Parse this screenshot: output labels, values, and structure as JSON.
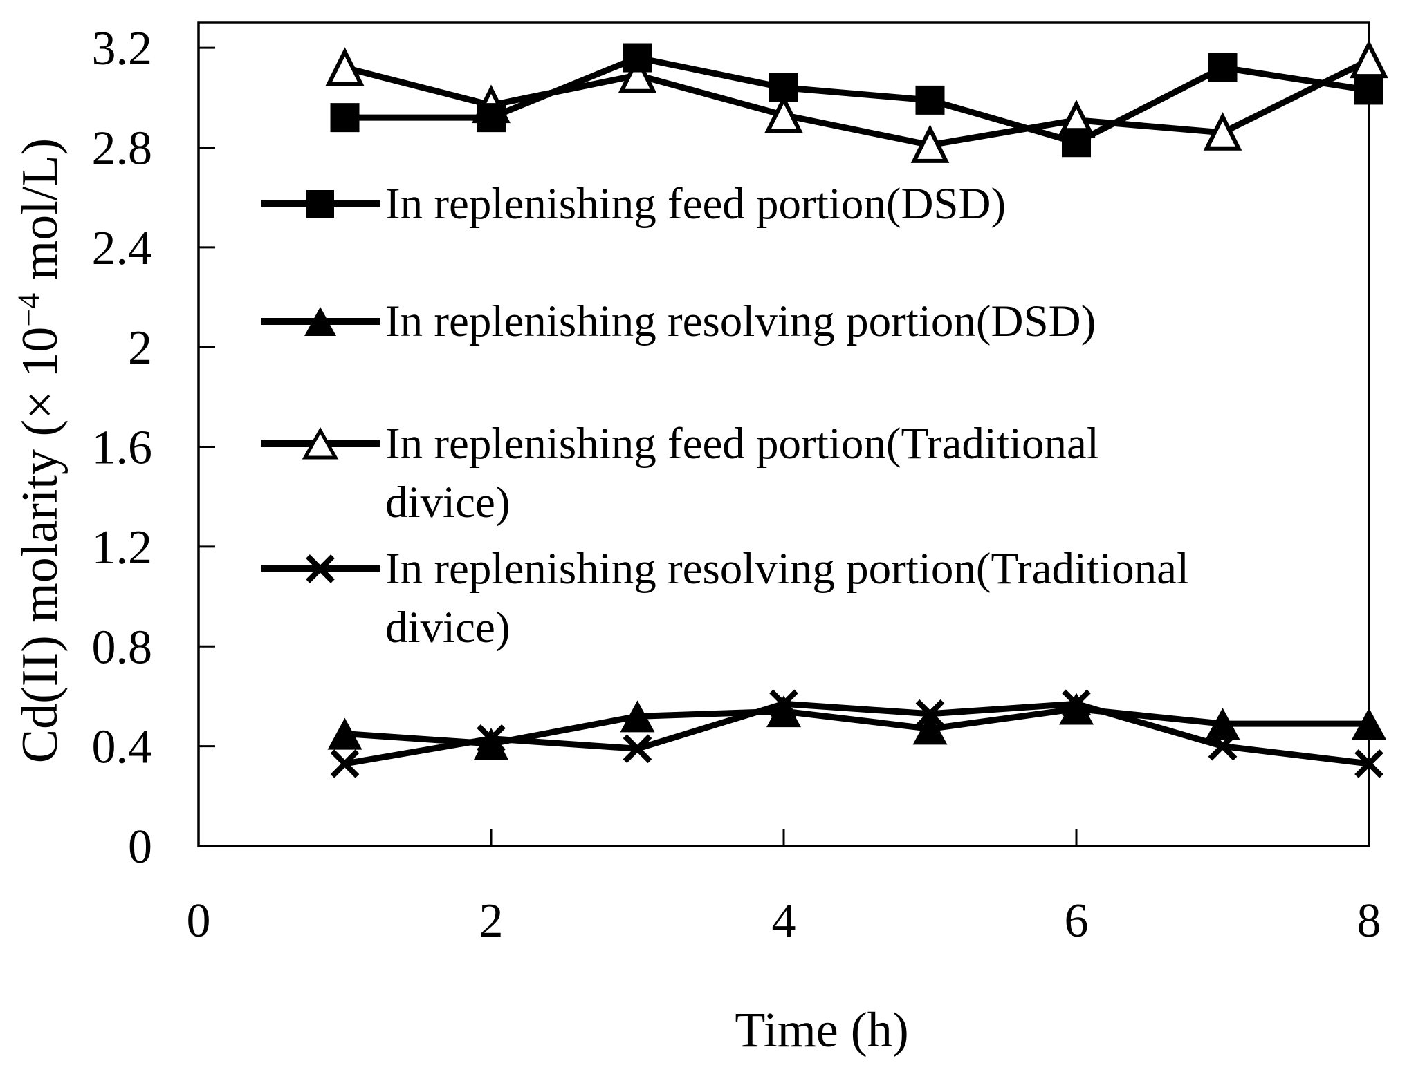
{
  "figure": {
    "background": "#ffffff",
    "foreground": "#000000"
  },
  "chart_data": {
    "type": "line",
    "title": "",
    "xlabel": "Time (h)",
    "ylabel": "Cd(II) molarity (× 10⁻⁴ mol/L)",
    "ylabel_parts": {
      "prefix": "Cd(II) molarity (× 10",
      "superscript": "−4",
      "suffix": " mol/L)"
    },
    "xlim": [
      0,
      8
    ],
    "ylim": [
      0,
      3.3
    ],
    "x_ticks": [
      0,
      2,
      4,
      6,
      8
    ],
    "x_tick_labels": [
      "0",
      "2",
      "4",
      "6",
      "8"
    ],
    "y_ticks": [
      0,
      0.4,
      0.8,
      1.2,
      1.6,
      2,
      2.4,
      2.8,
      3.2
    ],
    "y_tick_labels": [
      "0",
      "0.4",
      "0.8",
      "1.2",
      "1.6",
      "2",
      "2.4",
      "2.8",
      "3.2"
    ],
    "grid": false,
    "legend_position": "inside-upper-left",
    "x": [
      1,
      2,
      3,
      4,
      5,
      6,
      7,
      8
    ],
    "series": [
      {
        "name": "In replenishing feed portion(DSD)",
        "marker": "filled-square",
        "line_color": "#000000",
        "values": [
          2.92,
          2.92,
          3.16,
          3.04,
          2.99,
          2.82,
          3.12,
          3.03
        ]
      },
      {
        "name": "In replenishing resolving portion(DSD)",
        "marker": "filled-triangle",
        "line_color": "#000000",
        "values": [
          0.45,
          0.41,
          0.52,
          0.54,
          0.47,
          0.55,
          0.49,
          0.49
        ]
      },
      {
        "name": "In replenishing feed portion(Traditional divice)",
        "marker": "open-triangle",
        "line_color": "#000000",
        "values": [
          3.12,
          2.97,
          3.09,
          2.93,
          2.81,
          2.91,
          2.86,
          3.15
        ]
      },
      {
        "name": "In replenishing resolving portion(Traditional divice)",
        "marker": "x-cross",
        "line_color": "#000000",
        "values": [
          0.33,
          0.43,
          0.39,
          0.57,
          0.53,
          0.57,
          0.4,
          0.33
        ]
      }
    ]
  },
  "legend": {
    "items": [
      {
        "label": "In replenishing feed portion(DSD)",
        "marker": "filled-square",
        "lines": [
          "In replenishing feed portion(DSD)",
          ""
        ]
      },
      {
        "label": "In replenishing resolving portion(DSD)",
        "marker": "filled-triangle",
        "lines": [
          "In replenishing resolving portion(DSD)",
          ""
        ]
      },
      {
        "label": "In replenishing feed portion(Traditional divice)",
        "marker": "open-triangle",
        "lines": [
          "In replenishing feed portion(Traditional",
          "divice)"
        ]
      },
      {
        "label": "In replenishing resolving portion(Traditional divice)",
        "marker": "x-cross",
        "lines": [
          "In replenishing resolving portion(Traditional",
          "divice)"
        ]
      }
    ]
  }
}
